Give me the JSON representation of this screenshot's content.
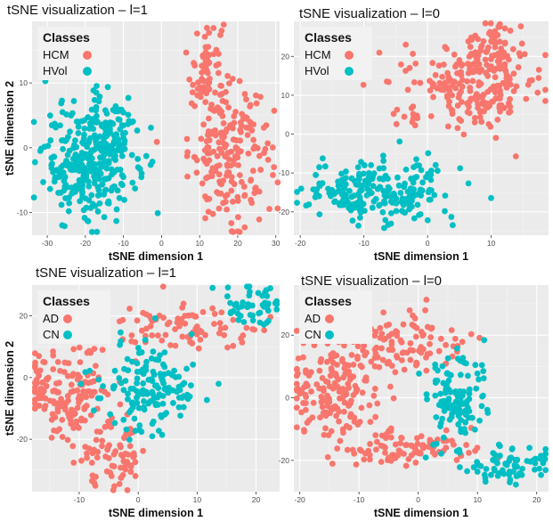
{
  "figure": {
    "legend_title": "Classes"
  },
  "chart_data": [
    {
      "type": "scatter",
      "title": "tSNE visualization – l=1",
      "xlabel": "tSNE dimension 1",
      "ylabel": "tSNE dimension 2",
      "xlim": [
        -34,
        31
      ],
      "ylim": [
        -13.5,
        19.5
      ],
      "xticks": [
        -30,
        -20,
        -10,
        0,
        10,
        20,
        30
      ],
      "yticks": [
        -10,
        0,
        10
      ],
      "legend": {
        "title": "Classes",
        "position": "top-left"
      },
      "grid": true,
      "series": [
        {
          "name": "HCM",
          "color": "#F8766D",
          "clusters": [
            {
              "cx": 12,
              "cy": 12,
              "sx": 2.2,
              "sy": 4.5,
              "n": 70
            },
            {
              "cx": 18,
              "cy": -1,
              "sx": 5.5,
              "sy": 5.2,
              "n": 190
            }
          ]
        },
        {
          "name": "HVol",
          "color": "#00BFC4",
          "clusters": [
            {
              "cx": -19,
              "cy": -2,
              "sx": 6,
              "sy": 4.5,
              "n": 300
            },
            {
              "cx": -13,
              "cy": 3,
              "sx": 2.5,
              "sy": 3,
              "n": 60
            }
          ]
        }
      ]
    },
    {
      "type": "scatter",
      "title": "tSNE visualization – l=0",
      "xlabel": "tSNE dimension 1",
      "ylabel": "",
      "xlim": [
        -21,
        19
      ],
      "ylim": [
        -26,
        29
      ],
      "xticks": [
        -20,
        -10,
        0,
        10
      ],
      "yticks": [
        -20,
        -10,
        0,
        10,
        20
      ],
      "legend": {
        "title": "Classes",
        "position": "top-left"
      },
      "grid": true,
      "series": [
        {
          "name": "HCM",
          "color": "#F8766D",
          "clusters": [
            {
              "cx": 7,
              "cy": 12,
              "sx": 5.5,
              "sy": 5,
              "n": 210
            },
            {
              "cx": 9,
              "cy": 22,
              "sx": 3,
              "sy": 3.5,
              "n": 60
            }
          ]
        },
        {
          "name": "HVol",
          "color": "#00BFC4",
          "clusters": [
            {
              "cx": -8,
              "cy": -15,
              "sx": 6,
              "sy": 4,
              "n": 230
            }
          ]
        }
      ]
    },
    {
      "type": "scatter",
      "title": "tSNE visualization – l=1",
      "xlabel": "tSNE dimension 1",
      "ylabel": "tSNE dimension 2",
      "xlim": [
        -18,
        24
      ],
      "ylim": [
        -37,
        30
      ],
      "xticks": [
        -10,
        0,
        10,
        20
      ],
      "yticks": [
        -20,
        0,
        20
      ],
      "legend": {
        "title": "Classes",
        "position": "top-left"
      },
      "grid": true,
      "series": [
        {
          "name": "AD",
          "color": "#F8766D",
          "clusters": [
            {
              "cx": -12,
              "cy": -5,
              "sx": 4,
              "sy": 7,
              "n": 160
            },
            {
              "cx": -4,
              "cy": -25,
              "sx": 2.5,
              "sy": 6,
              "n": 70
            },
            {
              "cx": 8,
              "cy": 16,
              "sx": 7,
              "sy": 4,
              "n": 90
            }
          ]
        },
        {
          "name": "CN",
          "color": "#00BFC4",
          "clusters": [
            {
              "cx": 2,
              "cy": -3,
              "sx": 4,
              "sy": 7,
              "n": 150
            },
            {
              "cx": 19,
              "cy": 23,
              "sx": 2.5,
              "sy": 3,
              "n": 50
            }
          ]
        }
      ]
    },
    {
      "type": "scatter",
      "title": "tSNE visualization – l=0",
      "xlabel": "tSNE dimension 1",
      "ylabel": "",
      "xlim": [
        -21,
        22
      ],
      "ylim": [
        -30,
        36
      ],
      "xticks": [
        -20,
        -10,
        0,
        10,
        20
      ],
      "yticks": [
        -20,
        0,
        20
      ],
      "legend": {
        "title": "Classes",
        "position": "top-left"
      },
      "grid": true,
      "series": [
        {
          "name": "AD",
          "color": "#F8766D",
          "clusters": [
            {
              "cx": -14,
              "cy": 2,
              "sx": 4,
              "sy": 9,
              "n": 170
            },
            {
              "cx": -2,
              "cy": 18,
              "sx": 6,
              "sy": 5,
              "n": 100
            },
            {
              "cx": -2,
              "cy": -16,
              "sx": 6,
              "sy": 3,
              "n": 90
            }
          ]
        },
        {
          "name": "CN",
          "color": "#00BFC4",
          "clusters": [
            {
              "cx": 6,
              "cy": 0,
              "sx": 2.5,
              "sy": 8,
              "n": 120
            },
            {
              "cx": 15,
              "cy": -22,
              "sx": 4,
              "sy": 3,
              "n": 70
            }
          ]
        }
      ]
    }
  ]
}
